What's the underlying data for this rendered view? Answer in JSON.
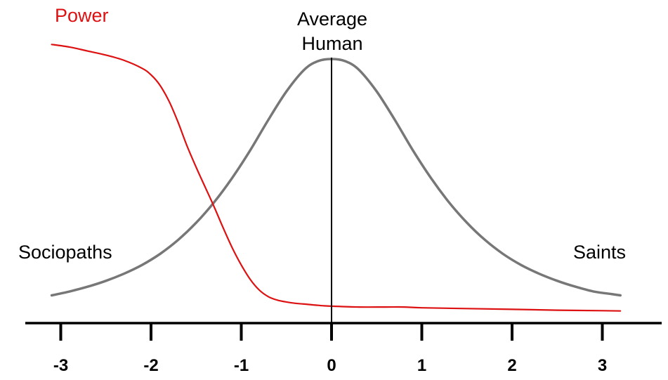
{
  "chart_data": {
    "type": "line",
    "title": "",
    "xlabel": "",
    "ylabel": "",
    "xlim": [
      -3.4,
      3.7
    ],
    "ylim": [
      0,
      1.12
    ],
    "grid": false,
    "ticks": [
      {
        "value": -3,
        "label": "-3"
      },
      {
        "value": -2,
        "label": "-2"
      },
      {
        "value": -1,
        "label": "-1"
      },
      {
        "value": 0,
        "label": "0"
      },
      {
        "value": 1,
        "label": "1"
      },
      {
        "value": 2,
        "label": "2"
      },
      {
        "value": 3,
        "label": "3"
      }
    ],
    "annotations": {
      "power": "Power",
      "average_line1": "Average",
      "average_line2": "Human",
      "sociopaths": "Sociopaths",
      "saints": "Saints"
    },
    "series": [
      {
        "name": "Power",
        "color": "#dd1111",
        "x": [
          -3.1,
          -2.9,
          -2.7,
          -2.5,
          -2.3,
          -2.1,
          -2.0,
          -1.9,
          -1.8,
          -1.7,
          -1.6,
          -1.5,
          -1.4,
          -1.3,
          -1.2,
          -1.1,
          -1.0,
          -0.9,
          -0.8,
          -0.7,
          -0.6,
          -0.5,
          -0.4,
          -0.3,
          -0.2,
          -0.1,
          0.0,
          0.3,
          0.6,
          0.8,
          1.0,
          1.5,
          2.0,
          2.5,
          3.0,
          3.2
        ],
        "y": [
          1.055,
          1.045,
          1.03,
          1.015,
          0.995,
          0.965,
          0.94,
          0.9,
          0.84,
          0.76,
          0.67,
          0.59,
          0.515,
          0.44,
          0.36,
          0.285,
          0.22,
          0.165,
          0.125,
          0.1,
          0.087,
          0.08,
          0.075,
          0.072,
          0.069,
          0.066,
          0.064,
          0.061,
          0.061,
          0.061,
          0.058,
          0.055,
          0.052,
          0.049,
          0.047,
          0.046
        ]
      },
      {
        "name": "",
        "color": "#777777",
        "x": [
          -3.1,
          -2.9,
          -2.7,
          -2.5,
          -2.3,
          -2.1,
          -1.9,
          -1.7,
          -1.5,
          -1.3,
          -1.1,
          -0.9,
          -0.7,
          -0.5,
          -0.3,
          -0.15,
          0.0,
          0.15,
          0.3,
          0.5,
          0.7,
          0.9,
          1.1,
          1.3,
          1.5,
          1.7,
          1.9,
          2.1,
          2.3,
          2.5,
          2.7,
          2.9,
          3.1,
          3.2
        ],
        "y": [
          0.105,
          0.12,
          0.138,
          0.16,
          0.187,
          0.22,
          0.262,
          0.315,
          0.38,
          0.458,
          0.55,
          0.655,
          0.77,
          0.877,
          0.96,
          0.992,
          1.0,
          0.992,
          0.96,
          0.877,
          0.77,
          0.655,
          0.55,
          0.458,
          0.38,
          0.315,
          0.262,
          0.22,
          0.187,
          0.16,
          0.138,
          0.12,
          0.11,
          0.105
        ]
      }
    ],
    "reference_line": {
      "x": 0,
      "color": "#000000"
    }
  }
}
